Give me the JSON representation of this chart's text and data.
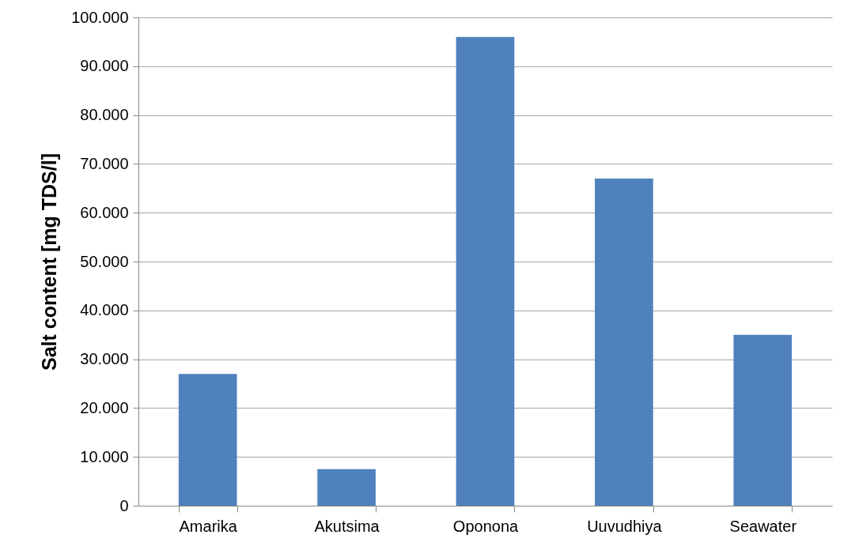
{
  "chart_data": {
    "type": "bar",
    "ylabel": "Salt content [mg TDS/l]",
    "categories": [
      "Amarika",
      "Akutsima",
      "Oponona",
      "Uuvudhiya",
      "Seawater"
    ],
    "values": [
      27000,
      7500,
      96000,
      67000,
      35000
    ],
    "color": "#4f81bd",
    "ylim": [
      0,
      100000
    ],
    "yticks": [
      0,
      {
        "value": 10000,
        "label": "10.000"
      },
      {
        "value": 20000,
        "label": "20.000"
      },
      {
        "value": 30000,
        "label": "30.000"
      },
      {
        "value": 40000,
        "label": "40.000"
      },
      {
        "value": 50000,
        "label": "50.000"
      },
      {
        "value": 60000,
        "label": "60.000"
      },
      {
        "value": 70000,
        "label": "70.000"
      },
      {
        "value": 80000,
        "label": "80.000"
      },
      {
        "value": 90000,
        "label": "90.000"
      },
      {
        "value": 100000,
        "label": "100.000"
      }
    ],
    "grid": "y"
  }
}
